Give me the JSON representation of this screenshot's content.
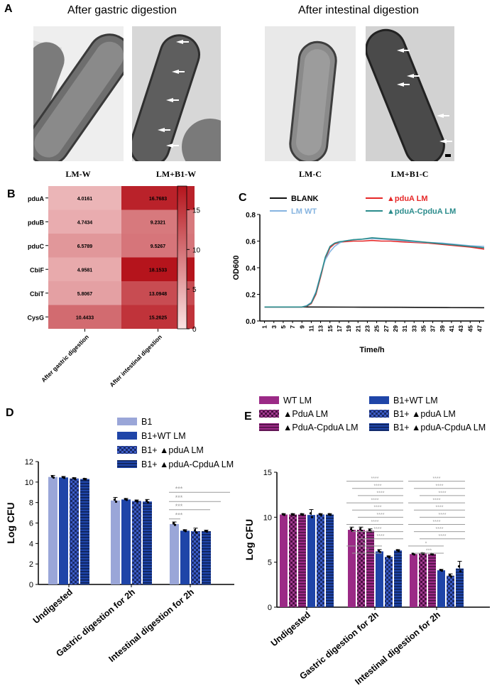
{
  "panel_a": {
    "letter": "A",
    "title_left": "After gastric digestion",
    "title_right": "After intestinal digestion",
    "images": [
      {
        "label": "LM-W"
      },
      {
        "label": "LM+B1-W"
      },
      {
        "label": "LM-C"
      },
      {
        "label": "LM+B1-C"
      }
    ]
  },
  "chart_data": [
    {
      "panel": "B",
      "type": "heatmap",
      "rows": [
        "pduA",
        "pduB",
        "pduC",
        "CbiF",
        "CbiT",
        "CysG"
      ],
      "columns": [
        "After gastric digestion",
        "After intestinal digestion"
      ],
      "values": [
        [
          4.0161,
          16.7683
        ],
        [
          4.7434,
          9.2321
        ],
        [
          6.5789,
          9.5267
        ],
        [
          4.9581,
          18.1533
        ],
        [
          5.8067,
          13.0948
        ],
        [
          10.4433,
          15.2625
        ]
      ],
      "value_labels": [
        [
          "4.0161",
          "16.7683"
        ],
        [
          "4.7434",
          "9.2321"
        ],
        [
          "6.5789",
          "9.5267"
        ],
        [
          "4.9581",
          "18.1533"
        ],
        [
          "5.8067",
          "13.0948"
        ],
        [
          "10.4433",
          "15.2625"
        ]
      ],
      "colorbar_range": [
        0,
        18
      ],
      "colorbar_ticks": [
        "0",
        "5",
        "10",
        "15"
      ],
      "color_low": "#fbe3e3",
      "color_high": "#b5141c"
    },
    {
      "panel": "C",
      "type": "line",
      "xlabel": "Time/h",
      "ylabel": "OD600",
      "ylim": [
        0,
        0.8
      ],
      "yticks": [
        "0.0",
        "0.2",
        "0.4",
        "0.6",
        "0.8"
      ],
      "x_ticks": [
        "1",
        "3",
        "5",
        "7",
        "9",
        "11",
        "13",
        "15",
        "17",
        "19",
        "21",
        "23",
        "25",
        "27",
        "29",
        "31",
        "33",
        "35",
        "37",
        "39",
        "41",
        "43",
        "45",
        "47"
      ],
      "legend": [
        "BLANK",
        "▲pduA LM",
        "LM WT",
        "▲pduA-CpduA LM"
      ],
      "series": [
        {
          "name": "BLANK",
          "color": "#111111",
          "x": [
            1,
            10,
            20,
            30,
            40,
            48
          ],
          "y": [
            0.105,
            0.105,
            0.104,
            0.103,
            0.101,
            0.1
          ]
        },
        {
          "name": "▲pduA LM",
          "color": "#e62828",
          "x": [
            1,
            9,
            10,
            11,
            12,
            13,
            14,
            15,
            16,
            17,
            18,
            20,
            22,
            24,
            26,
            28,
            30,
            33,
            36,
            39,
            42,
            45,
            48
          ],
          "y": [
            0.105,
            0.105,
            0.11,
            0.13,
            0.2,
            0.33,
            0.47,
            0.55,
            0.58,
            0.59,
            0.595,
            0.6,
            0.6,
            0.605,
            0.6,
            0.6,
            0.595,
            0.59,
            0.585,
            0.575,
            0.565,
            0.555,
            0.54
          ]
        },
        {
          "name": "LM WT",
          "color": "#86b4e0",
          "x": [
            1,
            9,
            10,
            11,
            12,
            13,
            14,
            15,
            16,
            17,
            18,
            20,
            22,
            24,
            26,
            28,
            30,
            33,
            36,
            39,
            42,
            45,
            48
          ],
          "y": [
            0.105,
            0.105,
            0.115,
            0.14,
            0.22,
            0.35,
            0.46,
            0.52,
            0.56,
            0.585,
            0.6,
            0.61,
            0.615,
            0.62,
            0.615,
            0.61,
            0.605,
            0.595,
            0.59,
            0.585,
            0.575,
            0.565,
            0.56
          ]
        },
        {
          "name": "▲pduA-CpduA LM",
          "color": "#2b8c8c",
          "x": [
            1,
            9,
            10,
            11,
            12,
            13,
            14,
            15,
            16,
            17,
            18,
            20,
            22,
            24,
            26,
            28,
            30,
            33,
            36,
            39,
            42,
            45,
            48
          ],
          "y": [
            0.105,
            0.105,
            0.112,
            0.135,
            0.21,
            0.34,
            0.48,
            0.56,
            0.585,
            0.595,
            0.6,
            0.61,
            0.615,
            0.625,
            0.62,
            0.615,
            0.61,
            0.6,
            0.59,
            0.58,
            0.57,
            0.56,
            0.55
          ]
        }
      ]
    },
    {
      "panel": "D",
      "type": "bar",
      "ylabel": "Log CFU",
      "ylim": [
        0,
        12
      ],
      "yticks": [
        "0",
        "2",
        "4",
        "6",
        "8",
        "10",
        "12"
      ],
      "categories": [
        "Undigested",
        "Gastric digestion for 2h",
        "Intestinal digestion for 2h"
      ],
      "legend": [
        "B1",
        "B1+WT LM",
        "B1+ ▲pduA LM",
        "B1+ ▲pduA-CpduA LM"
      ],
      "series": [
        {
          "name": "B1",
          "color": "#9aa6d8",
          "pattern": "solid",
          "values": [
            10.5,
            8.2,
            5.9
          ],
          "errors": [
            0.15,
            0.3,
            0.2
          ]
        },
        {
          "name": "B1+WT LM",
          "color": "#1f45a8",
          "pattern": "solid",
          "values": [
            10.45,
            8.3,
            5.25
          ],
          "errors": [
            0.1,
            0.1,
            0.1
          ]
        },
        {
          "name": "B1+ ▲pduA LM",
          "color": "#1f3c8c",
          "pattern": "check",
          "values": [
            10.35,
            8.15,
            5.2
          ],
          "errors": [
            0.08,
            0.1,
            0.3
          ]
        },
        {
          "name": "B1+ ▲pduA-CpduA LM",
          "color": "#1f45a8",
          "pattern": "hstripe",
          "values": [
            10.3,
            8.1,
            5.2
          ],
          "errors": [
            0.05,
            0.2,
            0.1
          ]
        }
      ],
      "significance": [
        "***",
        "***",
        "***",
        "***"
      ]
    },
    {
      "panel": "E",
      "type": "bar",
      "ylabel": "Log CFU",
      "ylim": [
        0,
        15
      ],
      "yticks": [
        "0",
        "5",
        "10",
        "15"
      ],
      "categories": [
        "Undigested",
        "Gastric digestion for 2h",
        "Intestinal digestion for 2h"
      ],
      "legend": [
        "WT LM",
        "B1+WT LM",
        "▲PduA LM",
        "B1+ ▲pduA LM",
        "▲PduA-CpduA LM",
        "B1+ ▲pduA-CpduA LM"
      ],
      "series": [
        {
          "name": "WT LM",
          "color": "#9b2a86",
          "pattern": "solid",
          "values": [
            10.3,
            8.6,
            5.9
          ],
          "errors": [
            0.1,
            0.3,
            0.1
          ]
        },
        {
          "name": "▲PduA LM",
          "color": "#7a1f6c",
          "pattern": "check",
          "values": [
            10.3,
            8.6,
            5.95
          ],
          "errors": [
            0.1,
            0.3,
            0.1
          ]
        },
        {
          "name": "▲PduA-CpduA LM",
          "color": "#9b2a86",
          "pattern": "hstripe",
          "values": [
            10.3,
            8.5,
            5.9
          ],
          "errors": [
            0.1,
            0.2,
            0.1
          ]
        },
        {
          "name": "B1+WT LM",
          "color": "#1f45a8",
          "pattern": "solid",
          "values": [
            10.25,
            6.2,
            4.1
          ],
          "errors": [
            0.6,
            0.2,
            0.1
          ]
        },
        {
          "name": "B1+ ▲pduA LM",
          "color": "#1f3c8c",
          "pattern": "check",
          "values": [
            10.3,
            5.6,
            3.5
          ],
          "errors": [
            0.1,
            0.1,
            0.2
          ]
        },
        {
          "name": "B1+ ▲pduA-CpduA LM",
          "color": "#1f45a8",
          "pattern": "hstripe",
          "values": [
            10.3,
            6.3,
            4.3
          ],
          "errors": [
            0.1,
            0.1,
            0.8
          ]
        }
      ],
      "significance_gastric": [
        "****",
        "****",
        "****",
        "****",
        "****",
        "****",
        "****",
        "****",
        "****",
        "**",
        "**"
      ],
      "significance_intestinal": [
        "****",
        "****",
        "****",
        "****",
        "****",
        "****",
        "****",
        "****",
        "****",
        "*",
        "***"
      ]
    }
  ],
  "panel_letters": {
    "b": "B",
    "c": "C",
    "d": "D",
    "e": "E"
  },
  "colors": {
    "grey_sig": "#9b9b9b"
  }
}
